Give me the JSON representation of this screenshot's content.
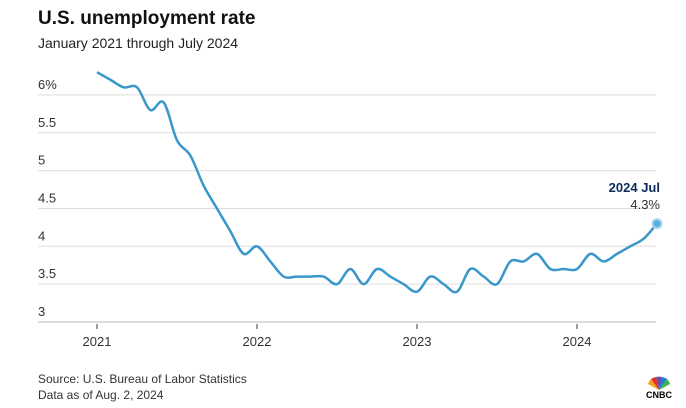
{
  "chart_data": {
    "type": "line",
    "title": "U.S. unemployment rate",
    "subtitle": "January 2021 through July 2024",
    "ylabel": "",
    "xlabel": "",
    "ylim": [
      3,
      6.4
    ],
    "yticks": [
      {
        "v": 6,
        "label": "6%"
      },
      {
        "v": 5.5,
        "label": "5.5"
      },
      {
        "v": 5,
        "label": "5"
      },
      {
        "v": 4.5,
        "label": "4.5"
      },
      {
        "v": 4,
        "label": "4"
      },
      {
        "v": 3.5,
        "label": "3.5"
      },
      {
        "v": 3,
        "label": "3"
      }
    ],
    "xticks": [
      {
        "m": 0,
        "label": "2021"
      },
      {
        "m": 12,
        "label": "2022"
      },
      {
        "m": 24,
        "label": "2023"
      },
      {
        "m": 36,
        "label": "2024"
      }
    ],
    "series": [
      {
        "name": "Unemployment rate",
        "color": "#3a97cc",
        "values": [
          6.3,
          6.2,
          6.1,
          6.1,
          5.8,
          5.9,
          5.4,
          5.2,
          4.8,
          4.5,
          4.2,
          3.9,
          4.0,
          3.8,
          3.6,
          3.6,
          3.6,
          3.6,
          3.5,
          3.7,
          3.5,
          3.7,
          3.6,
          3.5,
          3.4,
          3.6,
          3.5,
          3.4,
          3.7,
          3.6,
          3.5,
          3.8,
          3.8,
          3.9,
          3.7,
          3.7,
          3.7,
          3.9,
          3.8,
          3.9,
          4.0,
          4.1,
          4.3
        ]
      }
    ],
    "annotation": {
      "label": "2024 Jul",
      "value": "4.3%"
    }
  },
  "source": "Source: U.S. Bureau of Labor Statistics",
  "asof": "Data as of Aug. 2, 2024",
  "logo": "CNBC"
}
